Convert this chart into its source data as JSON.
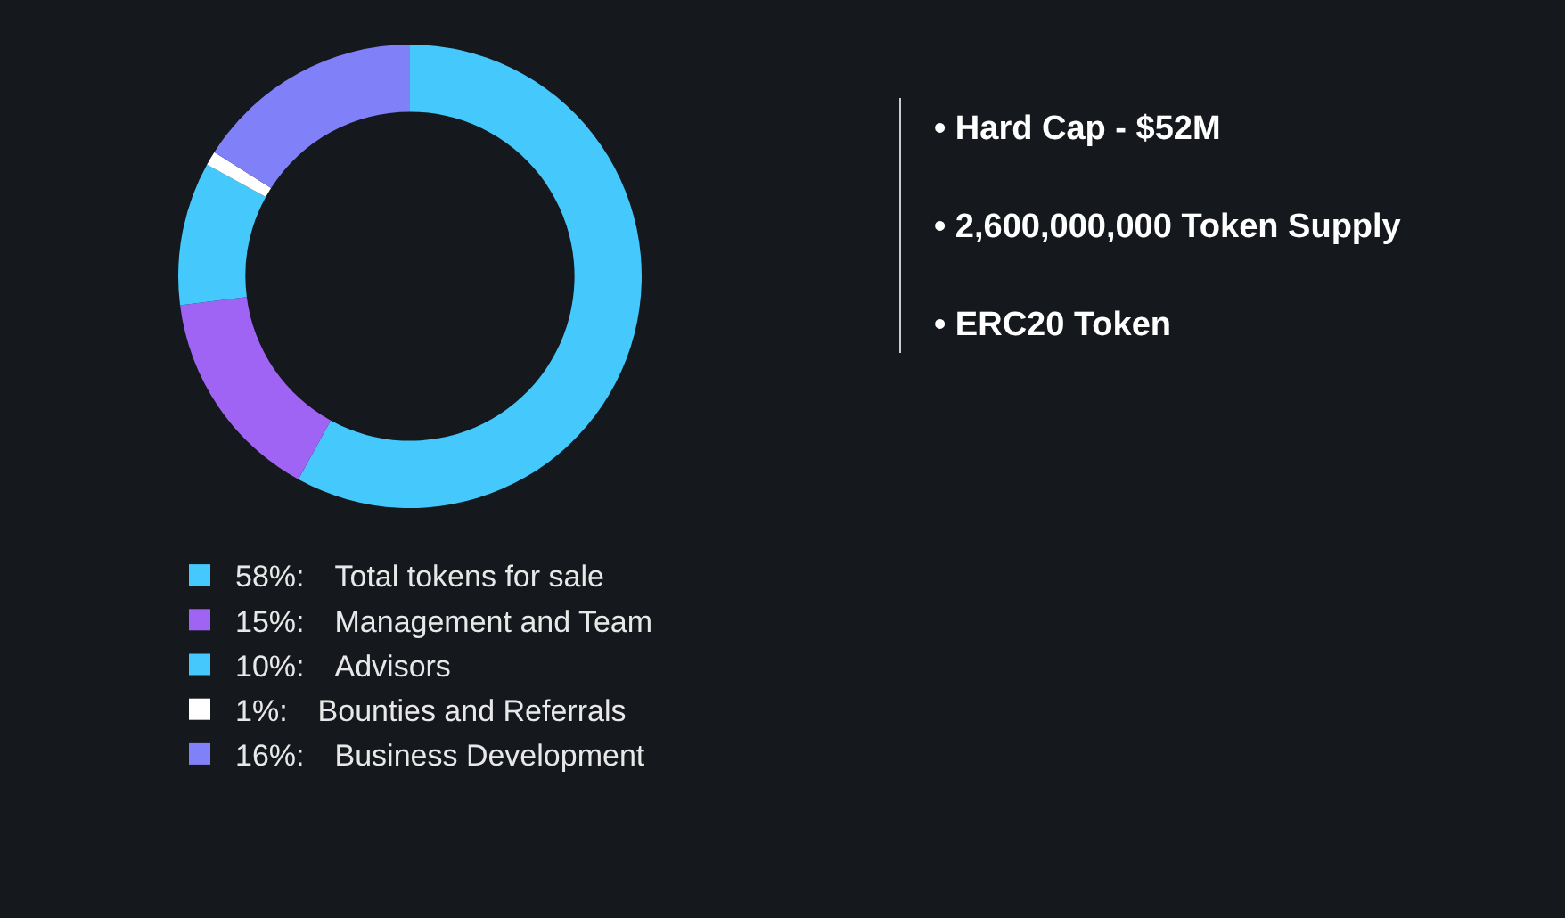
{
  "chart_data": {
    "type": "donut",
    "categories": [
      "Total tokens for sale",
      "Management and Team",
      "Advisors",
      "Bounties and Referrals",
      "Business Development"
    ],
    "values": [
      58,
      15,
      10,
      1,
      16
    ],
    "value_labels": [
      "58%:",
      "15%:",
      "10%:",
      "1%:",
      "16%:"
    ],
    "colors": [
      "#45c8fc",
      "#a064f5",
      "#45c8fc",
      "#ffffff",
      "#8080f8"
    ],
    "legend": "bottom",
    "annotations": [
      "• Hard Cap - $52M",
      "• 2,600,000,000 Token Supply",
      "• ERC20 Token"
    ]
  }
}
